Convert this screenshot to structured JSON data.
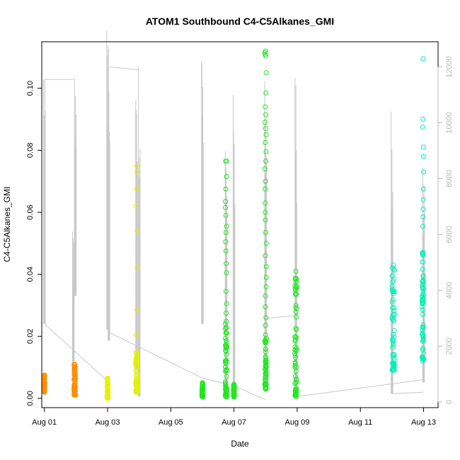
{
  "chart_data": {
    "type": "scatter",
    "title": "ATOM1 Southbound C4-C5Alkanes_GMI",
    "xlabel": "Date",
    "ylabel": "C4-C5Alkanes_GMI",
    "x_unit": "date",
    "xlim": [
      "2016-07-31T22:00",
      "2016-08-13T11:00"
    ],
    "ylim": [
      -0.003,
      0.115
    ],
    "x_ticks": [
      {
        "date": "2016-08-01",
        "label": "Aug 01"
      },
      {
        "date": "2016-08-03",
        "label": "Aug 03"
      },
      {
        "date": "2016-08-05",
        "label": "Aug 05"
      },
      {
        "date": "2016-08-07",
        "label": "Aug 07"
      },
      {
        "date": "2016-08-09",
        "label": "Aug 09"
      },
      {
        "date": "2016-08-11",
        "label": "Aug 11"
      },
      {
        "date": "2016-08-13",
        "label": "Aug 13"
      }
    ],
    "y_ticks": [
      0.0,
      0.02,
      0.04,
      0.06,
      0.08,
      0.1
    ],
    "y_tick_labels": [
      "0.00",
      "0.02",
      "0.04",
      "0.06",
      "0.08",
      "0.10"
    ],
    "y2lim": [
      -200,
      12900
    ],
    "y2_ticks": [
      0,
      2000,
      4000,
      6000,
      8000,
      10000,
      12000
    ],
    "y2_tick_labels": [
      "0",
      "2000",
      "4000",
      "6000",
      "8000",
      "10000",
      "12000"
    ],
    "grid": false,
    "marker": "open-circle",
    "point_colors": {
      "orange": "#ff8c00",
      "yellow": "#e4f000",
      "green": "#1ee81e",
      "aqua_green": "#00f060",
      "teal": "#00f0b4"
    },
    "line_color": "#c8c8c8",
    "scatter_clusters": [
      {
        "x": "2016-08-01T00:00",
        "x_spread_hours": 0.5,
        "y_min": 0.002,
        "y_max": 0.0075,
        "color": "orange",
        "outliers": []
      },
      {
        "x": "2016-08-01T23:00",
        "x_spread_hours": 1.2,
        "y_min": 0.001,
        "y_max": 0.011,
        "color": "orange",
        "outliers": []
      },
      {
        "x": "2016-08-03T00:00",
        "x_spread_hours": 0.6,
        "y_min": 0.0,
        "y_max": 0.0065,
        "color": "yellow",
        "outliers": []
      },
      {
        "x": "2016-08-03T22:00",
        "x_spread_hours": 1.5,
        "y_min": 0.002,
        "y_max": 0.015,
        "color": "yellow",
        "outliers": [
          0.075,
          0.073,
          0.0675,
          0.062,
          0.054,
          0.042,
          0.0285,
          0.0205
        ]
      },
      {
        "x": "2016-08-06T00:00",
        "x_spread_hours": 0.8,
        "y_min": 0.0005,
        "y_max": 0.005,
        "color": "green",
        "outliers": []
      },
      {
        "x": "2016-08-06T18:00",
        "x_spread_hours": 1.2,
        "y_min": 0.0005,
        "y_max": 0.0275,
        "color": "green",
        "outliers": [
          0.0765,
          0.0765,
          0.0715,
          0.0675,
          0.0635,
          0.0615,
          0.059,
          0.0555,
          0.0535,
          0.0505,
          0.0475,
          0.0435,
          0.0405,
          0.0345,
          0.0305
        ]
      },
      {
        "x": "2016-08-07T00:00",
        "x_spread_hours": 0.6,
        "y_min": 0.0005,
        "y_max": 0.0045,
        "color": "green",
        "outliers": []
      },
      {
        "x": "2016-08-08T00:00",
        "x_spread_hours": 1.2,
        "y_min": 0.003,
        "y_max": 0.0205,
        "color": "green",
        "outliers": [
          0.112,
          0.1115,
          0.111,
          0.1105,
          0.105,
          0.0985,
          0.094,
          0.0915,
          0.089,
          0.087,
          0.085,
          0.0825,
          0.0795,
          0.0765,
          0.074,
          0.07,
          0.0675,
          0.063,
          0.06,
          0.0575,
          0.0535,
          0.05,
          0.046,
          0.0425,
          0.039,
          0.036,
          0.033,
          0.0295,
          0.026,
          0.0235
        ]
      },
      {
        "x": "2016-08-08T23:00",
        "x_spread_hours": 1.5,
        "y_min": 0.0005,
        "y_max": 0.041,
        "color": "green",
        "outliers": []
      },
      {
        "x": "2016-08-12T01:00",
        "x_spread_hours": 1.8,
        "y_min": 0.009,
        "y_max": 0.043,
        "color": "teal",
        "outliers": []
      },
      {
        "x": "2016-08-12T23:30",
        "x_spread_hours": 1.2,
        "y_min": 0.012,
        "y_max": 0.047,
        "color": "teal",
        "outliers": [
          0.1095,
          0.09,
          0.0875,
          0.081,
          0.078,
          0.073,
          0.0675,
          0.064,
          0.061,
          0.0585,
          0.0555
        ]
      }
    ],
    "y2_line_segments": [
      {
        "x_start": "2016-08-01T00:00",
        "x_end": "2016-08-01T00:00",
        "y2_min": 2800,
        "y2_max": 11550
      },
      {
        "x_start": "2016-08-01T00:00",
        "x_end": "2016-08-01T22:00",
        "y2_min": 11550,
        "y2_max": 11550
      },
      {
        "x_start": "2016-08-01T22:00",
        "x_end": "2016-08-01T22:00",
        "y2_min": 800,
        "y2_max": 6100
      },
      {
        "x_start": "2016-08-01T23:30",
        "x_end": "2016-08-01T23:30",
        "y2_min": 3800,
        "y2_max": 11600
      },
      {
        "x_start": "2016-08-03T00:00",
        "x_end": "2016-08-03T00:00",
        "y2_min": 2600,
        "y2_max": 13300
      },
      {
        "x_start": "2016-08-03T01:00",
        "x_end": "2016-08-03T01:00",
        "y2_min": 2200,
        "y2_max": 12200
      },
      {
        "x_start": "2016-08-03T22:00",
        "x_end": "2016-08-03T22:00",
        "y2_min": 1200,
        "y2_max": 10800
      },
      {
        "x_start": "2016-08-04T00:00",
        "x_end": "2016-08-04T00:00",
        "y2_min": 200,
        "y2_max": 12000
      },
      {
        "x_start": "2016-08-06T00:00",
        "x_end": "2016-08-06T00:00",
        "y2_min": 2800,
        "y2_max": 12200
      },
      {
        "x_start": "2016-08-06T18:00",
        "x_end": "2016-08-06T18:00",
        "y2_min": 300,
        "y2_max": 9000
      },
      {
        "x_start": "2016-08-07T00:00",
        "x_end": "2016-08-07T00:00",
        "y2_min": 200,
        "y2_max": 11000
      },
      {
        "x_start": "2016-08-08T00:00",
        "x_end": "2016-08-08T00:00",
        "y2_min": 500,
        "y2_max": 11500
      },
      {
        "x_start": "2016-08-08T23:00",
        "x_end": "2016-08-08T23:00",
        "y2_min": 200,
        "y2_max": 11600
      },
      {
        "x_start": "2016-08-12T00:00",
        "x_end": "2016-08-12T00:00",
        "y2_min": 300,
        "y2_max": 10400
      },
      {
        "x_start": "2016-08-13T00:00",
        "x_end": "2016-08-13T00:00",
        "y2_min": 700,
        "y2_max": 8400
      }
    ],
    "y2_connectors": [
      {
        "x": [
          "2016-08-01T00:00",
          "2016-08-03T00:00"
        ],
        "y2": [
          2800,
          750
        ]
      },
      {
        "x": [
          "2016-08-03T00:00",
          "2016-08-04T00:00"
        ],
        "y2": [
          12000,
          11900
        ]
      },
      {
        "x": [
          "2016-08-03T01:00",
          "2016-08-06T00:00"
        ],
        "y2": [
          2500,
          860
        ]
      },
      {
        "x": [
          "2016-08-06T00:00",
          "2016-08-07T00:00"
        ],
        "y2": [
          860,
          580
        ]
      },
      {
        "x": [
          "2016-08-07T00:00",
          "2016-08-08T00:00"
        ],
        "y2": [
          580,
          80
        ]
      },
      {
        "x": [
          "2016-08-08T00:00",
          "2016-08-09T00:00"
        ],
        "y2": [
          3000,
          3100
        ]
      },
      {
        "x": [
          "2016-08-09T00:00",
          "2016-08-13T00:00"
        ],
        "y2": [
          200,
          800
        ]
      },
      {
        "x": [
          "2016-08-12T00:00",
          "2016-08-13T00:00"
        ],
        "y2": [
          300,
          350
        ]
      }
    ]
  }
}
